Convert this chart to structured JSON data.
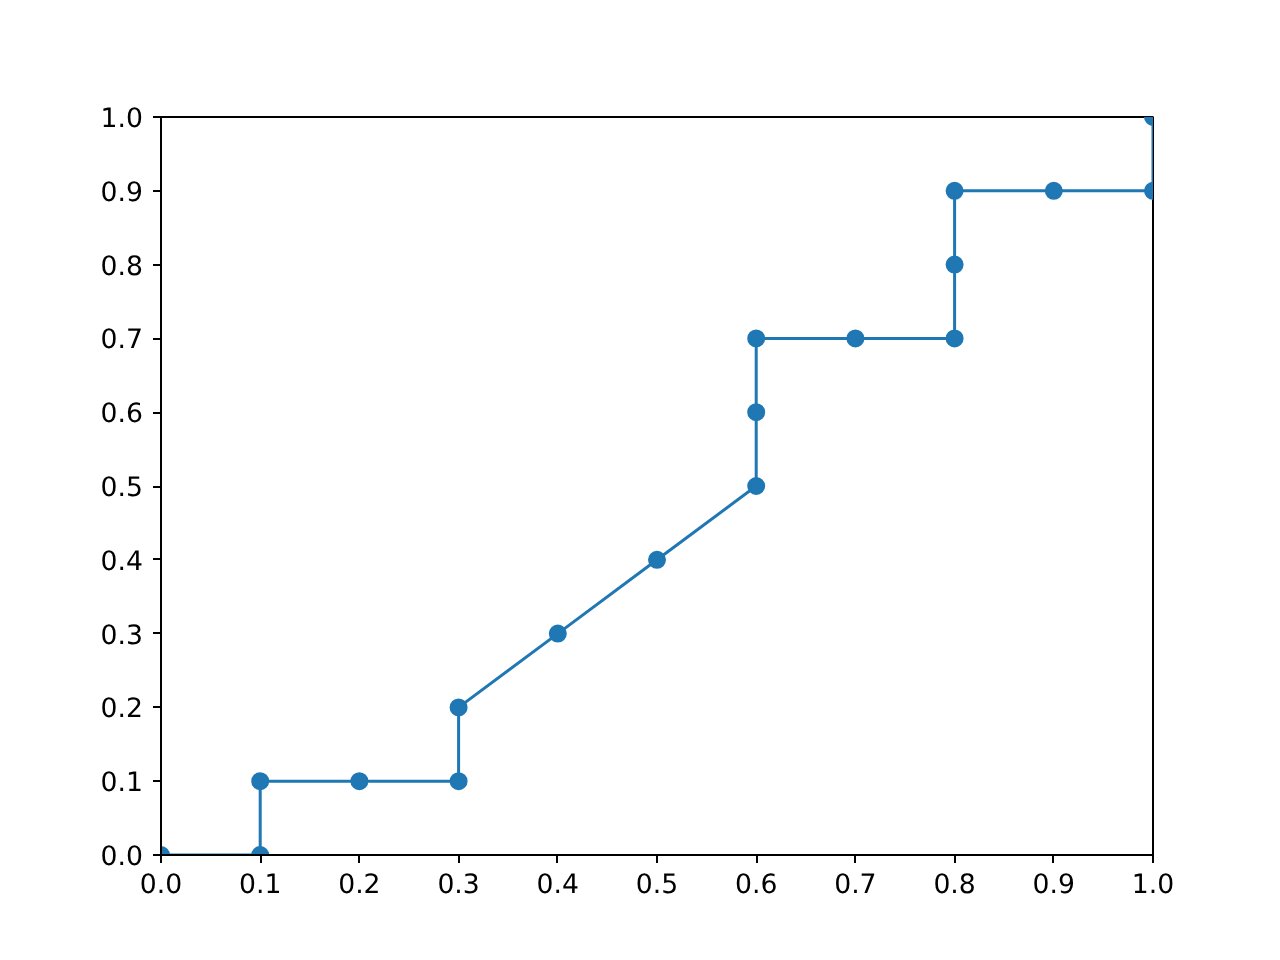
{
  "chart_data": {
    "type": "line",
    "marker": "circle",
    "line_style": "solid",
    "grid": false,
    "x": [
      0,
      0.1,
      0.1,
      0.2,
      0.3,
      0.3,
      0.4,
      0.5,
      0.6,
      0.6,
      0.6,
      0.7,
      0.8,
      0.8,
      0.8,
      0.9,
      1.0,
      1.0
    ],
    "series": [
      {
        "color": "#1f77b4",
        "values": [
          0,
          0,
          0.1,
          0.1,
          0.1,
          0.2,
          0.3,
          0.4,
          0.5,
          0.6,
          0.7,
          0.7,
          0.7,
          0.8,
          0.9,
          0.9,
          0.9,
          1.0
        ]
      }
    ],
    "xlim": [
      0,
      1
    ],
    "ylim": [
      0,
      1
    ],
    "xticks": [
      {
        "value": 0,
        "label": "0.0"
      },
      {
        "value": 0.1,
        "label": "0.1"
      },
      {
        "value": 0.2,
        "label": "0.2"
      },
      {
        "value": 0.3,
        "label": "0.3"
      },
      {
        "value": 0.4,
        "label": "0.4"
      },
      {
        "value": 0.5,
        "label": "0.5"
      },
      {
        "value": 0.6,
        "label": "0.6"
      },
      {
        "value": 0.7,
        "label": "0.7"
      },
      {
        "value": 0.8,
        "label": "0.8"
      },
      {
        "value": 0.9,
        "label": "0.9"
      },
      {
        "value": 1,
        "label": "1.0"
      }
    ],
    "yticks": [
      {
        "value": 0,
        "label": "0.0"
      },
      {
        "value": 0.1,
        "label": "0.1"
      },
      {
        "value": 0.2,
        "label": "0.2"
      },
      {
        "value": 0.3,
        "label": "0.3"
      },
      {
        "value": 0.4,
        "label": "0.4"
      },
      {
        "value": 0.5,
        "label": "0.5"
      },
      {
        "value": 0.6,
        "label": "0.6"
      },
      {
        "value": 0.7,
        "label": "0.7"
      },
      {
        "value": 0.8,
        "label": "0.8"
      },
      {
        "value": 0.9,
        "label": "0.9"
      },
      {
        "value": 1,
        "label": "1.0"
      }
    ]
  }
}
